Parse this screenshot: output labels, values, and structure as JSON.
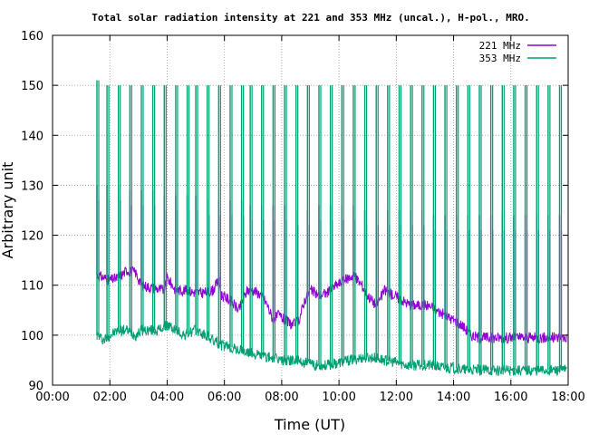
{
  "chart_data": {
    "type": "line",
    "title": "Total solar radiation intensity at 221 and 353 MHz (uncal.), H-pol., MRO.",
    "xlabel": "Time (UT)",
    "ylabel": "Arbitrary unit",
    "x_ticks": [
      "00:00",
      "02:00",
      "04:00",
      "06:00",
      "08:00",
      "10:00",
      "12:00",
      "14:00",
      "16:00",
      "18:00"
    ],
    "y_ticks": [
      "90",
      "100",
      "110",
      "120",
      "130",
      "140",
      "150",
      "160"
    ],
    "xlim_hours": [
      0,
      18
    ],
    "ylim": [
      90,
      160
    ],
    "grid": true,
    "legend_position": "top-right",
    "series": [
      {
        "name": "221 MHz",
        "color": "#9400d3",
        "baseline": [
          [
            1.55,
            112
          ],
          [
            1.8,
            111.5
          ],
          [
            2.0,
            111
          ],
          [
            2.3,
            111.5
          ],
          [
            2.6,
            113
          ],
          [
            2.9,
            112.5
          ],
          [
            3.1,
            110
          ],
          [
            3.5,
            109.5
          ],
          [
            3.9,
            109
          ],
          [
            4.0,
            111.5
          ],
          [
            4.3,
            109
          ],
          [
            4.6,
            109
          ],
          [
            5.0,
            108.5
          ],
          [
            5.3,
            108.5
          ],
          [
            5.6,
            109
          ],
          [
            5.8,
            111
          ],
          [
            5.9,
            108
          ],
          [
            6.2,
            107
          ],
          [
            6.5,
            105
          ],
          [
            6.8,
            109
          ],
          [
            7.0,
            109
          ],
          [
            7.3,
            108
          ],
          [
            7.5,
            106
          ],
          [
            7.7,
            103
          ],
          [
            7.9,
            104
          ],
          [
            8.1,
            103
          ],
          [
            8.4,
            102
          ],
          [
            8.6,
            103
          ],
          [
            8.8,
            107
          ],
          [
            9.0,
            109
          ],
          [
            9.3,
            108
          ],
          [
            9.6,
            108.5
          ],
          [
            9.9,
            110
          ],
          [
            10.2,
            111
          ],
          [
            10.5,
            112
          ],
          [
            10.8,
            110
          ],
          [
            11.0,
            108
          ],
          [
            11.3,
            106
          ],
          [
            11.6,
            109
          ],
          [
            11.9,
            108
          ],
          [
            12.2,
            107
          ],
          [
            12.5,
            106
          ],
          [
            12.8,
            106
          ],
          [
            13.1,
            106
          ],
          [
            13.4,
            105
          ],
          [
            13.7,
            104
          ],
          [
            14.0,
            103
          ],
          [
            14.3,
            102
          ],
          [
            14.6,
            100
          ],
          [
            14.9,
            99.5
          ],
          [
            15.5,
            99.5
          ],
          [
            16.0,
            99.5
          ],
          [
            16.5,
            99.5
          ],
          [
            17.0,
            99.5
          ],
          [
            17.5,
            99.5
          ],
          [
            17.95,
            99.5
          ]
        ],
        "spikes": [
          [
            1.55,
            130
          ],
          [
            1.9,
            130
          ],
          [
            2.3,
            130
          ],
          [
            2.7,
            129
          ],
          [
            3.1,
            129
          ],
          [
            3.5,
            129
          ],
          [
            3.9,
            128
          ],
          [
            4.3,
            128
          ],
          [
            4.7,
            128
          ],
          [
            5.0,
            128
          ],
          [
            5.4,
            127
          ],
          [
            5.8,
            127
          ],
          [
            6.2,
            127
          ],
          [
            6.6,
            127
          ],
          [
            6.9,
            126
          ],
          [
            7.3,
            126
          ],
          [
            7.7,
            126
          ],
          [
            8.1,
            126
          ],
          [
            8.5,
            125
          ],
          [
            8.9,
            125
          ],
          [
            9.3,
            126
          ],
          [
            9.7,
            126
          ],
          [
            10.1,
            126
          ],
          [
            10.5,
            126
          ],
          [
            10.9,
            125
          ],
          [
            11.3,
            125
          ],
          [
            11.7,
            125
          ],
          [
            12.1,
            125
          ],
          [
            12.5,
            125
          ],
          [
            12.9,
            125
          ],
          [
            13.3,
            124
          ],
          [
            13.7,
            124
          ],
          [
            14.1,
            124
          ],
          [
            14.5,
            124
          ],
          [
            14.9,
            124
          ],
          [
            15.3,
            124
          ],
          [
            15.7,
            124
          ],
          [
            16.1,
            124
          ],
          [
            16.5,
            124
          ],
          [
            16.9,
            124
          ],
          [
            17.3,
            124
          ],
          [
            17.7,
            124
          ]
        ]
      },
      {
        "name": "353 MHz",
        "color": "#009e73",
        "baseline": [
          [
            1.55,
            100
          ],
          [
            1.8,
            99
          ],
          [
            2.0,
            100
          ],
          [
            2.3,
            101
          ],
          [
            2.6,
            101
          ],
          [
            2.9,
            100
          ],
          [
            3.1,
            101
          ],
          [
            3.4,
            101
          ],
          [
            3.7,
            101
          ],
          [
            4.0,
            102
          ],
          [
            4.3,
            101
          ],
          [
            4.6,
            100
          ],
          [
            5.0,
            101
          ],
          [
            5.3,
            100
          ],
          [
            5.6,
            99
          ],
          [
            5.9,
            98
          ],
          [
            6.2,
            97.5
          ],
          [
            6.5,
            97
          ],
          [
            6.8,
            96.5
          ],
          [
            7.2,
            96
          ],
          [
            7.6,
            95.5
          ],
          [
            8.0,
            95
          ],
          [
            8.4,
            95
          ],
          [
            8.8,
            94.5
          ],
          [
            9.2,
            94
          ],
          [
            9.6,
            94
          ],
          [
            10.0,
            94.5
          ],
          [
            10.4,
            95
          ],
          [
            10.8,
            95.5
          ],
          [
            11.2,
            95.5
          ],
          [
            11.6,
            95
          ],
          [
            12.0,
            94.5
          ],
          [
            12.4,
            94
          ],
          [
            12.8,
            94
          ],
          [
            13.2,
            94
          ],
          [
            13.6,
            93.5
          ],
          [
            14.0,
            93.5
          ],
          [
            14.4,
            93
          ],
          [
            14.8,
            93
          ],
          [
            15.2,
            93
          ],
          [
            15.6,
            93
          ],
          [
            16.0,
            93
          ],
          [
            16.4,
            93
          ],
          [
            16.8,
            93
          ],
          [
            17.2,
            93
          ],
          [
            17.6,
            93
          ],
          [
            17.95,
            93
          ]
        ],
        "spikes": [
          [
            1.55,
            151
          ],
          [
            1.9,
            150
          ],
          [
            2.3,
            150
          ],
          [
            2.7,
            150
          ],
          [
            3.1,
            150
          ],
          [
            3.5,
            150
          ],
          [
            3.9,
            150
          ],
          [
            4.3,
            150
          ],
          [
            4.7,
            150
          ],
          [
            5.0,
            150
          ],
          [
            5.4,
            150
          ],
          [
            5.8,
            150
          ],
          [
            6.2,
            150
          ],
          [
            6.6,
            150
          ],
          [
            6.9,
            150
          ],
          [
            7.3,
            150
          ],
          [
            7.7,
            150
          ],
          [
            8.1,
            150
          ],
          [
            8.5,
            150
          ],
          [
            8.9,
            150
          ],
          [
            9.3,
            150
          ],
          [
            9.7,
            150
          ],
          [
            10.1,
            150
          ],
          [
            10.5,
            150
          ],
          [
            10.9,
            150
          ],
          [
            11.3,
            150
          ],
          [
            11.7,
            150
          ],
          [
            12.1,
            150
          ],
          [
            12.5,
            150
          ],
          [
            12.9,
            150
          ],
          [
            13.3,
            150
          ],
          [
            13.7,
            150
          ],
          [
            14.1,
            150
          ],
          [
            14.5,
            150
          ],
          [
            14.9,
            150
          ],
          [
            15.3,
            150
          ],
          [
            15.7,
            150
          ],
          [
            16.1,
            150
          ],
          [
            16.5,
            150
          ],
          [
            16.9,
            150
          ],
          [
            17.3,
            150
          ],
          [
            17.7,
            150
          ]
        ]
      }
    ]
  }
}
